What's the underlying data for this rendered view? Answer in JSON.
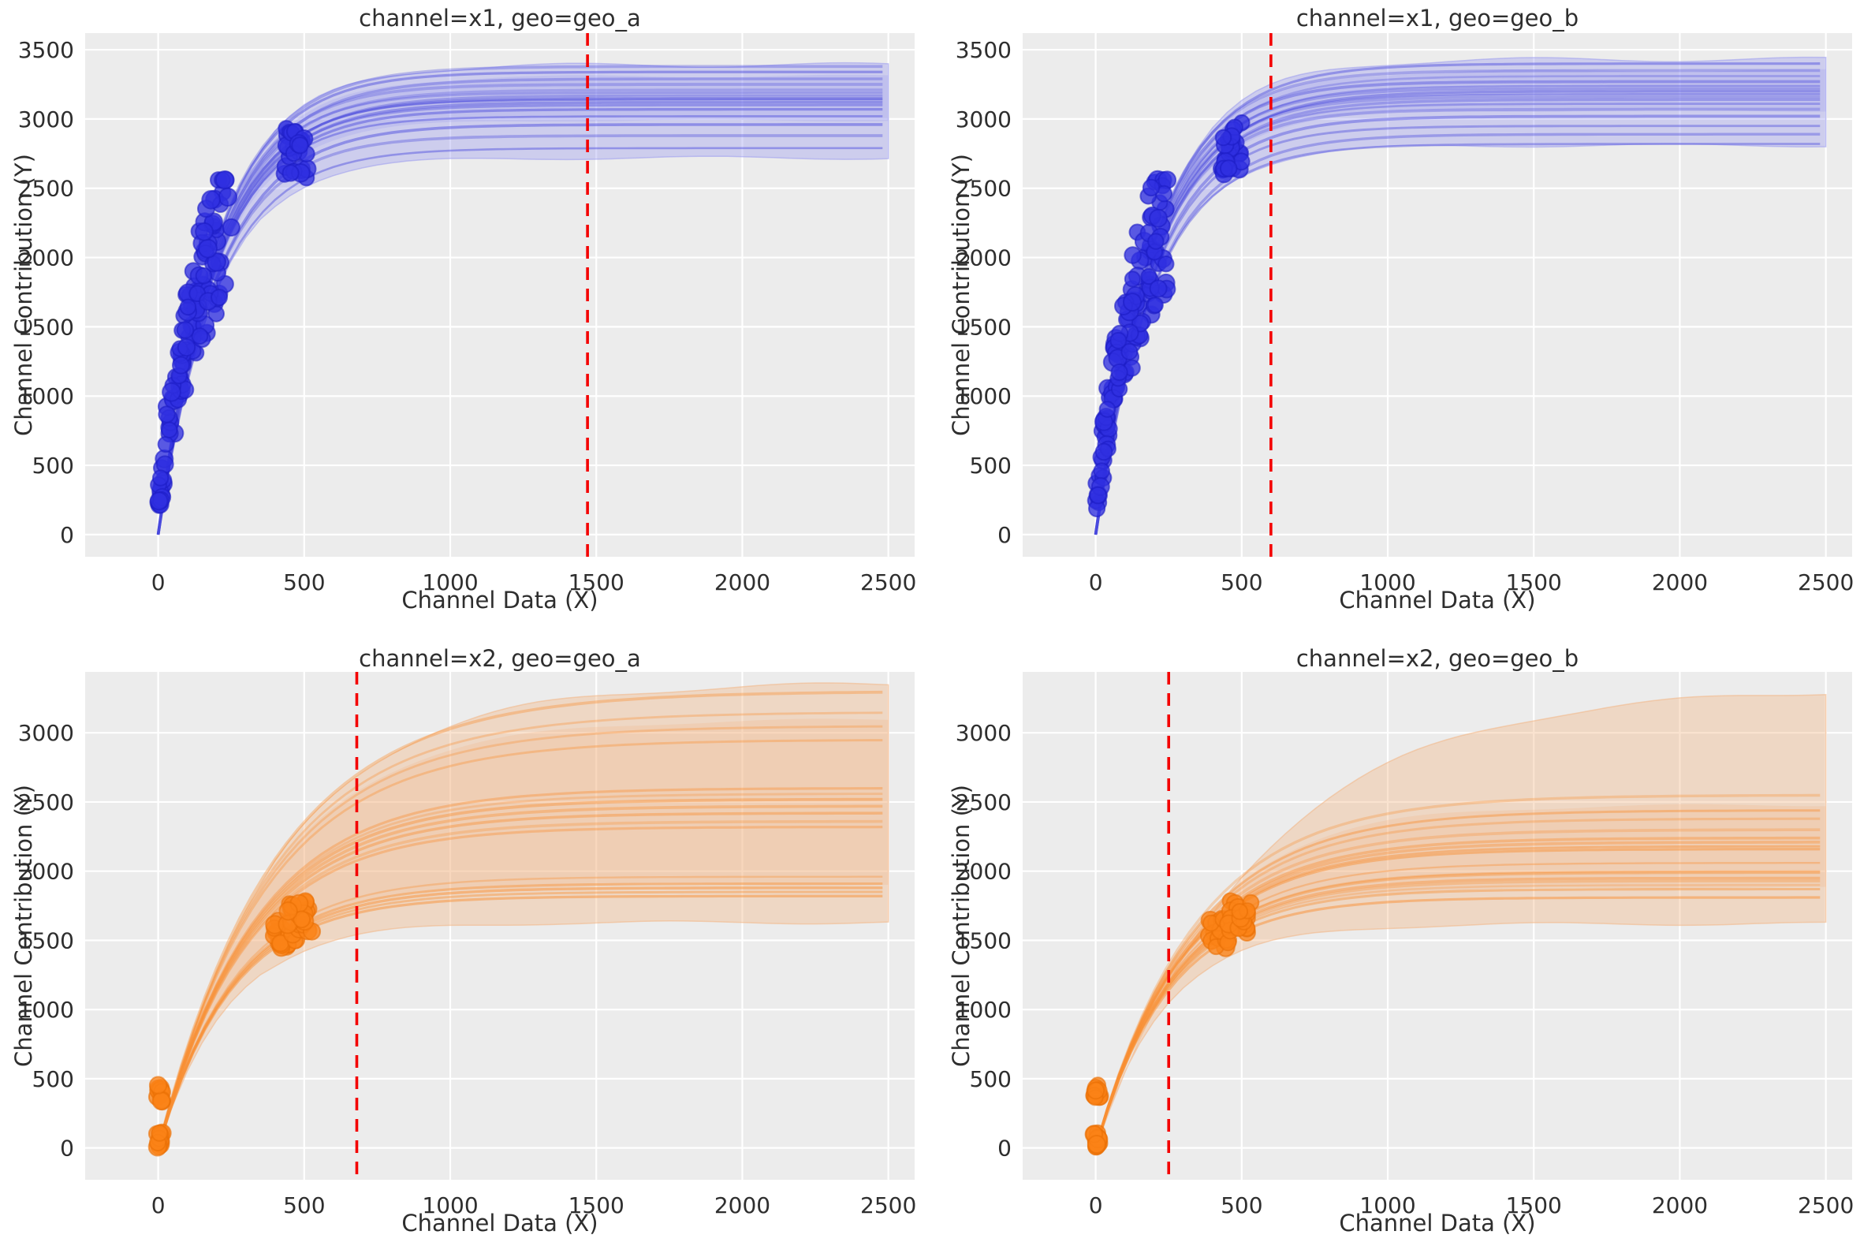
{
  "figure": {
    "background": "#ffffff",
    "plot_background": "#ececec",
    "grid_color": "#ffffff",
    "text_color": "#2e2e2e",
    "vline_color": "#f40000",
    "curve_model": "y = A * (1 - exp(-x / tau))",
    "x_axis_label": "Channel Data (X)",
    "y_axis_label": "Channel Contribution (Y)"
  },
  "chart_data": [
    {
      "type": "line",
      "title": "channel=x1, geo=geo_a",
      "xlabel": "Channel Data (X)",
      "ylabel": "Channel Contribution (Y)",
      "x_ticks": [
        0,
        500,
        1000,
        1500,
        2000,
        2500
      ],
      "y_ticks": [
        0,
        500,
        1000,
        1500,
        2000,
        2500,
        3000,
        3500
      ],
      "xlim": [
        -250,
        2590
      ],
      "ylim": [
        -160,
        3620
      ],
      "grid": true,
      "legend": "none",
      "point_color": "#2f2fe0",
      "point_edge": "#1d1dc4",
      "curve_color": "#4a4ade",
      "band_color": "#9a9aee",
      "vline_x": 1470,
      "vline_style": "dashed",
      "posterior_curves": [
        [
          3380,
          204
        ],
        [
          3340,
          201
        ],
        [
          3290,
          207
        ],
        [
          3250,
          196
        ],
        [
          3210,
          201
        ],
        [
          3190,
          193
        ],
        [
          3170,
          206
        ],
        [
          3150,
          199
        ],
        [
          3140,
          195
        ],
        [
          3120,
          203
        ],
        [
          3100,
          197
        ],
        [
          3070,
          200
        ],
        [
          3020,
          193
        ],
        [
          2960,
          204
        ],
        [
          2880,
          196
        ],
        [
          2790,
          199
        ]
      ],
      "band": {
        "lower": [
          2720,
          193
        ],
        "upper": [
          3390,
          207
        ]
      },
      "band_inner": {
        "lower": [
          2990,
          196
        ],
        "upper": [
          3310,
          204
        ]
      },
      "scatter_clusters": [
        {
          "kind": "cloud",
          "n": 115,
          "x_max": 255,
          "x_pow": 1.15,
          "amp": 2950,
          "tau": 168,
          "y_min": 40,
          "y_max": 2560
        },
        {
          "kind": "box",
          "n": 26,
          "x": [
            430,
            512
          ],
          "y": [
            2560,
            2950
          ]
        }
      ],
      "seed": 11
    },
    {
      "type": "line",
      "title": "channel=x1, geo=geo_b",
      "xlabel": "Channel Data (X)",
      "ylabel": "Channel Contribution (Y)",
      "x_ticks": [
        0,
        500,
        1000,
        1500,
        2000,
        2500
      ],
      "y_ticks": [
        0,
        500,
        1000,
        1500,
        2000,
        2500,
        3000,
        3500
      ],
      "xlim": [
        -250,
        2590
      ],
      "ylim": [
        -160,
        3620
      ],
      "grid": true,
      "legend": "none",
      "point_color": "#2f2fe0",
      "point_edge": "#1d1dc4",
      "curve_color": "#4a4ade",
      "band_color": "#9a9aee",
      "vline_x": 600,
      "vline_style": "dashed",
      "posterior_curves": [
        [
          3400,
          208
        ],
        [
          3350,
          199
        ],
        [
          3310,
          205
        ],
        [
          3270,
          194
        ],
        [
          3240,
          203
        ],
        [
          3220,
          197
        ],
        [
          3200,
          207
        ],
        [
          3180,
          200
        ],
        [
          3160,
          195
        ],
        [
          3140,
          204
        ],
        [
          3110,
          198
        ],
        [
          3070,
          194
        ],
        [
          3020,
          202
        ],
        [
          2950,
          197
        ],
        [
          2890,
          205
        ],
        [
          2820,
          199
        ]
      ],
      "band": {
        "lower": [
          2810,
          195
        ],
        "upper": [
          3430,
          208
        ]
      },
      "band_inner": {
        "lower": [
          3060,
          197
        ],
        "upper": [
          3350,
          205
        ]
      },
      "scatter_clusters": [
        {
          "kind": "cloud",
          "n": 118,
          "x_max": 250,
          "x_pow": 1.15,
          "amp": 2950,
          "tau": 170,
          "y_min": 40,
          "y_max": 2560
        },
        {
          "kind": "box",
          "n": 26,
          "x": [
            428,
            505
          ],
          "y": [
            2600,
            2990
          ]
        }
      ],
      "seed": 23
    },
    {
      "type": "line",
      "title": "channel=x2, geo=geo_a",
      "xlabel": "Channel Data (X)",
      "ylabel": "Channel Contribution (Y)",
      "x_ticks": [
        0,
        500,
        1000,
        1500,
        2000,
        2500
      ],
      "y_ticks": [
        0,
        500,
        1000,
        1500,
        2000,
        2500,
        3000
      ],
      "xlim": [
        -250,
        2590
      ],
      "ylim": [
        -230,
        3440
      ],
      "grid": true,
      "legend": "none",
      "point_color": "#fb8317",
      "point_edge": "#e96f05",
      "curve_color": "#f98f33",
      "band_color": "#f3b584",
      "vline_x": 680,
      "vline_style": "dashed",
      "posterior_curves": [
        [
          3300,
          400
        ],
        [
          3150,
          385
        ],
        [
          3050,
          375
        ],
        [
          2950,
          365
        ],
        [
          2600,
          330
        ],
        [
          2560,
          326
        ],
        [
          2520,
          322
        ],
        [
          2470,
          317
        ],
        [
          2420,
          312
        ],
        [
          2360,
          306
        ],
        [
          2320,
          302
        ],
        [
          1960,
          266
        ],
        [
          1910,
          261
        ],
        [
          1880,
          258
        ],
        [
          1850,
          255
        ],
        [
          1820,
          252
        ]
      ],
      "band": {
        "lower": [
          1630,
          240
        ],
        "upper": [
          3360,
          420
        ]
      },
      "band_inner": {
        "lower": [
          1900,
          262
        ],
        "upper": [
          3100,
          380
        ]
      },
      "scatter_clusters": [
        {
          "kind": "box",
          "n": 15,
          "x": [
            -6,
            14
          ],
          "y": [
            5,
            108
          ]
        },
        {
          "kind": "box",
          "n": 12,
          "x": [
            -6,
            14
          ],
          "y": [
            330,
            458
          ]
        },
        {
          "kind": "box",
          "n": 19,
          "x": [
            392,
            472
          ],
          "y": [
            1440,
            1655
          ]
        },
        {
          "kind": "box",
          "n": 22,
          "x": [
            443,
            530
          ],
          "y": [
            1545,
            1785
          ]
        }
      ],
      "seed": 37
    },
    {
      "type": "line",
      "title": "channel=x2, geo=geo_b",
      "xlabel": "Channel Data (X)",
      "ylabel": "Channel Contribution (Y)",
      "x_ticks": [
        0,
        500,
        1000,
        1500,
        2000,
        2500
      ],
      "y_ticks": [
        0,
        500,
        1000,
        1500,
        2000,
        2500,
        3000
      ],
      "xlim": [
        -250,
        2590
      ],
      "ylim": [
        -230,
        3440
      ],
      "grid": true,
      "legend": "none",
      "point_color": "#fb8317",
      "point_edge": "#e96f05",
      "curve_color": "#f98f33",
      "band_color": "#f3b584",
      "vline_x": 250,
      "vline_style": "dashed",
      "posterior_curves": [
        [
          2550,
          340
        ],
        [
          2440,
          327
        ],
        [
          2380,
          320
        ],
        [
          2300,
          310
        ],
        [
          2240,
          303
        ],
        [
          2210,
          299
        ],
        [
          2180,
          296
        ],
        [
          2160,
          293
        ],
        [
          2060,
          281
        ],
        [
          2000,
          274
        ],
        [
          1990,
          273
        ],
        [
          1950,
          268
        ],
        [
          1930,
          266
        ],
        [
          1900,
          262
        ],
        [
          1870,
          258
        ],
        [
          1810,
          251
        ]
      ],
      "band": {
        "lower": [
          1620,
          240
        ],
        "upper": [
          3330,
          560
        ]
      },
      "band_inner": {
        "lower": [
          1880,
          260
        ],
        "upper": [
          2480,
          330
        ]
      },
      "scatter_clusters": [
        {
          "kind": "box",
          "n": 14,
          "x": [
            -6,
            14
          ],
          "y": [
            5,
            108
          ]
        },
        {
          "kind": "box",
          "n": 12,
          "x": [
            -6,
            14
          ],
          "y": [
            335,
            455
          ]
        },
        {
          "kind": "box",
          "n": 18,
          "x": [
            390,
            470
          ],
          "y": [
            1445,
            1660
          ]
        },
        {
          "kind": "box",
          "n": 23,
          "x": [
            445,
            532
          ],
          "y": [
            1550,
            1790
          ]
        }
      ],
      "seed": 51
    }
  ]
}
